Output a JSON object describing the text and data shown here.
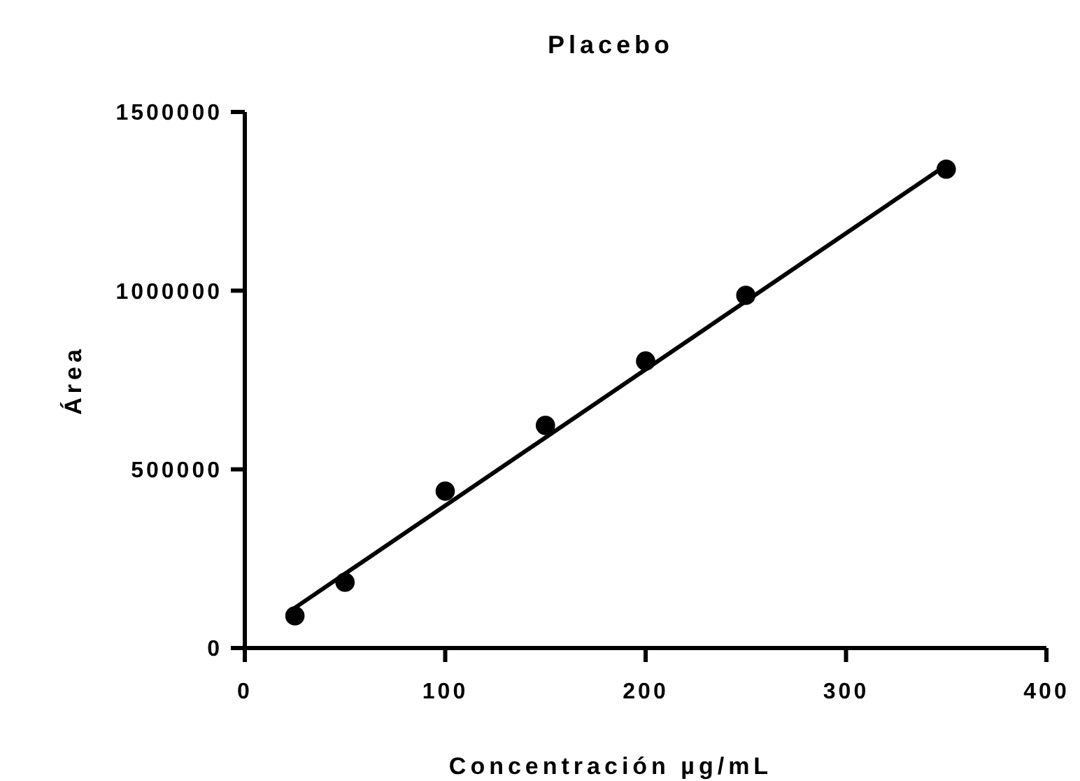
{
  "chart_data": {
    "type": "scatter",
    "title": "Placebo",
    "xlabel": "Concentración µg/mL",
    "ylabel": "Área",
    "xlim": [
      0,
      400
    ],
    "xticks": [
      0,
      100,
      200,
      300,
      400
    ],
    "ylim": [
      0,
      1500000
    ],
    "yticks": [
      0,
      500000,
      1000000,
      1500000
    ],
    "grid": false,
    "marker": "circle",
    "series": [
      {
        "color": "#000000",
        "x": [
          25,
          50,
          100,
          150,
          200,
          250,
          350
        ],
        "values": [
          90000,
          184000,
          439000,
          623000,
          803000,
          987000,
          1340000
        ]
      },
      {
        "type": "line",
        "color": "#000000",
        "line_style": "solid",
        "marker": "none",
        "x": [
          23,
          351
        ],
        "values": [
          105000,
          1355000
        ]
      }
    ]
  }
}
